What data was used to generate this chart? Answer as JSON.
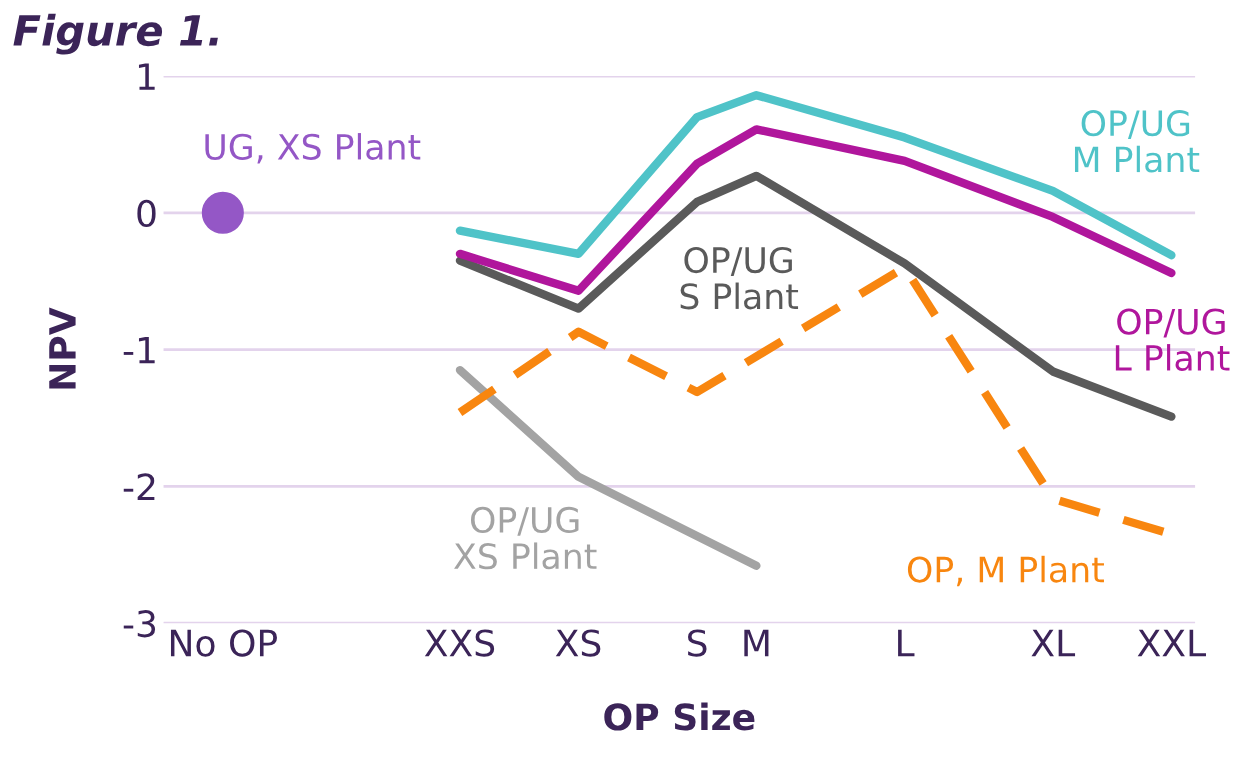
{
  "chart_data": {
    "type": "line",
    "title": "Figure 1.",
    "xlabel": "OP Size",
    "ylabel": "NPV",
    "categories": [
      "No OP",
      "XXS",
      "XS",
      "S",
      "M",
      "L",
      "XL",
      "XXL"
    ],
    "ylim": [
      -3,
      1
    ],
    "yticks": [
      -3,
      -2,
      -1,
      0,
      1
    ],
    "grid": "y",
    "legend": false,
    "series": [
      {
        "name": "UG, XS Plant",
        "type": "scatter",
        "color": "#9457c6",
        "values": [
          0,
          null,
          null,
          null,
          null,
          null,
          null,
          null
        ]
      },
      {
        "name": "OP/UG\nXS Plant",
        "color": "#a3a3a3",
        "values": [
          null,
          -1.15,
          -1.93,
          null,
          -2.58,
          null,
          null,
          null
        ]
      },
      {
        "name": "OP/UG\nS Plant",
        "color": "#5a5a5a",
        "values": [
          null,
          -0.35,
          -0.7,
          0.08,
          0.27,
          -0.37,
          -1.16,
          -1.49
        ]
      },
      {
        "name": "OP/UG\nM Plant",
        "color": "#4fc3c8",
        "values": [
          null,
          -0.13,
          -0.3,
          0.7,
          0.86,
          0.55,
          0.16,
          -0.31
        ]
      },
      {
        "name": "OP/UG\nL Plant",
        "color": "#b0169c",
        "values": [
          null,
          -0.3,
          -0.57,
          0.36,
          0.61,
          0.38,
          -0.03,
          -0.44
        ]
      },
      {
        "name": "OP, M Plant",
        "color": "#f8860f",
        "line_style": "dashed",
        "values": [
          null,
          -1.46,
          -0.87,
          -1.31,
          null,
          -0.4,
          -2.09,
          -2.35
        ]
      }
    ]
  }
}
